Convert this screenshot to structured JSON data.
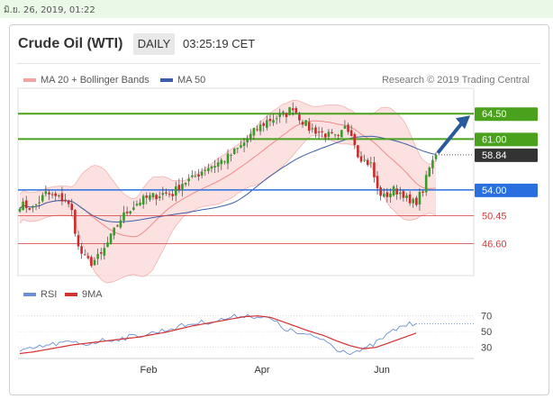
{
  "header": {
    "timestamp": "มิ.ย. 26, 2019, 01:22",
    "title": "Crude Oil (WTI)",
    "timeframe": "DAILY",
    "time": "03:25:19 CET",
    "copyright": "Research © 2019 Trading Central"
  },
  "colors": {
    "bollinger": "#f08a8a",
    "ma50": "#3a5fa8",
    "green_level": "#4aa11c",
    "blue_level": "#2a6fe0",
    "red_level": "#d63a3a",
    "arrow": "#2a5a9a",
    "rsi": "#6a90d8",
    "ma9": "#d43030",
    "candle_up": "#3a9a2a",
    "candle_down": "#cc2b2b"
  },
  "chart_data": [
    {
      "type": "candlestick",
      "legend": [
        "MA 20 + Bollinger Bands",
        "MA 50"
      ],
      "ylim": [
        42.2,
        68.0
      ],
      "price_levels": [
        {
          "value": 64.5,
          "label": "64.50",
          "kind": "resistance"
        },
        {
          "value": 61.0,
          "label": "61.00",
          "kind": "resistance"
        },
        {
          "value": 58.84,
          "label": "58.84",
          "kind": "last"
        },
        {
          "value": 54.0,
          "label": "54.00",
          "kind": "pivot"
        },
        {
          "value": 50.45,
          "label": "50.45",
          "kind": "support"
        },
        {
          "value": 46.6,
          "label": "46.60",
          "kind": "support"
        }
      ],
      "x_labels": [
        "Feb",
        "Apr",
        "Jun"
      ],
      "close_path": [
        [
          0,
          52.0
        ],
        [
          4,
          51.5
        ],
        [
          8,
          53.5
        ],
        [
          11,
          53.0
        ],
        [
          14,
          52.6
        ],
        [
          16,
          51.0
        ],
        [
          18,
          46.0
        ],
        [
          20,
          44.5
        ],
        [
          22,
          44.0
        ],
        [
          25,
          45.0
        ],
        [
          28,
          47.5
        ],
        [
          31,
          50.0
        ],
        [
          34,
          51.5
        ],
        [
          37,
          52.5
        ],
        [
          40,
          53.0
        ],
        [
          44,
          53.5
        ],
        [
          47,
          53.5
        ],
        [
          50,
          55.0
        ],
        [
          53,
          55.5
        ],
        [
          57,
          57.0
        ],
        [
          60,
          57.5
        ],
        [
          64,
          58.5
        ],
        [
          68,
          60.0
        ],
        [
          72,
          62.0
        ],
        [
          76,
          63.5
        ],
        [
          79,
          64.0
        ],
        [
          82,
          64.5
        ],
        [
          84,
          65.5
        ],
        [
          86,
          64.0
        ],
        [
          89,
          62.5
        ],
        [
          92,
          62.0
        ],
        [
          95,
          61.5
        ],
        [
          98,
          61.0
        ],
        [
          100,
          62.5
        ],
        [
          102,
          62.0
        ],
        [
          104,
          59.0
        ],
        [
          106,
          58.0
        ],
        [
          108,
          57.5
        ],
        [
          110,
          54.0
        ],
        [
          112,
          53.0
        ],
        [
          115,
          54.0
        ],
        [
          118,
          53.5
        ],
        [
          120,
          52.0
        ],
        [
          122,
          52.5
        ],
        [
          124,
          54.0
        ],
        [
          126,
          57.0
        ],
        [
          128,
          58.84
        ]
      ],
      "forecast": {
        "from": 58.84,
        "to": 64.5
      }
    },
    {
      "type": "line",
      "legend": [
        "RSI",
        "9MA"
      ],
      "ylim": [
        18,
        80
      ],
      "y_ticks": [
        70,
        50,
        30
      ],
      "series": [
        {
          "name": "RSI",
          "values": [
            24,
            28,
            32,
            35,
            36,
            34,
            38,
            40,
            42,
            45,
            48,
            52,
            56,
            60,
            62,
            64,
            68,
            71,
            69,
            66,
            54,
            48,
            44,
            40,
            28,
            24,
            26,
            36,
            48,
            58,
            60
          ]
        },
        {
          "name": "9MA",
          "values": [
            22,
            24,
            27,
            30,
            33,
            35,
            37,
            39,
            41,
            43,
            46,
            49,
            53,
            57,
            60,
            63,
            66,
            69,
            70,
            68,
            62,
            56,
            50,
            45,
            38,
            32,
            28,
            30,
            36,
            42,
            48
          ]
        }
      ]
    }
  ]
}
